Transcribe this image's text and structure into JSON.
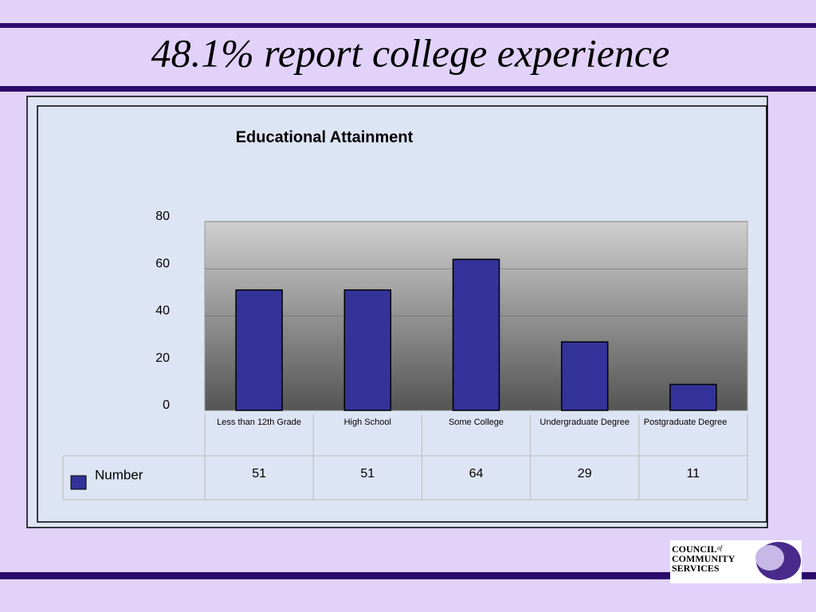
{
  "slide_title": "48.1% report college experience",
  "logo": [
    "COUNCIL",
    "of",
    "COMMUNITY",
    "SERVICES"
  ],
  "chart_data": {
    "type": "bar",
    "title": "Educational Attainment",
    "categories": [
      "Less than 12th Grade",
      "High School",
      "Some College",
      "Undergraduate Degree",
      "Postgraduate Degree"
    ],
    "series": [
      {
        "name": "Number",
        "color": "#333399",
        "values": [
          51,
          51,
          64,
          29,
          11
        ]
      }
    ],
    "ylim": [
      0,
      80
    ],
    "yticks": [
      0,
      20,
      40,
      60,
      80
    ],
    "grid": true
  }
}
